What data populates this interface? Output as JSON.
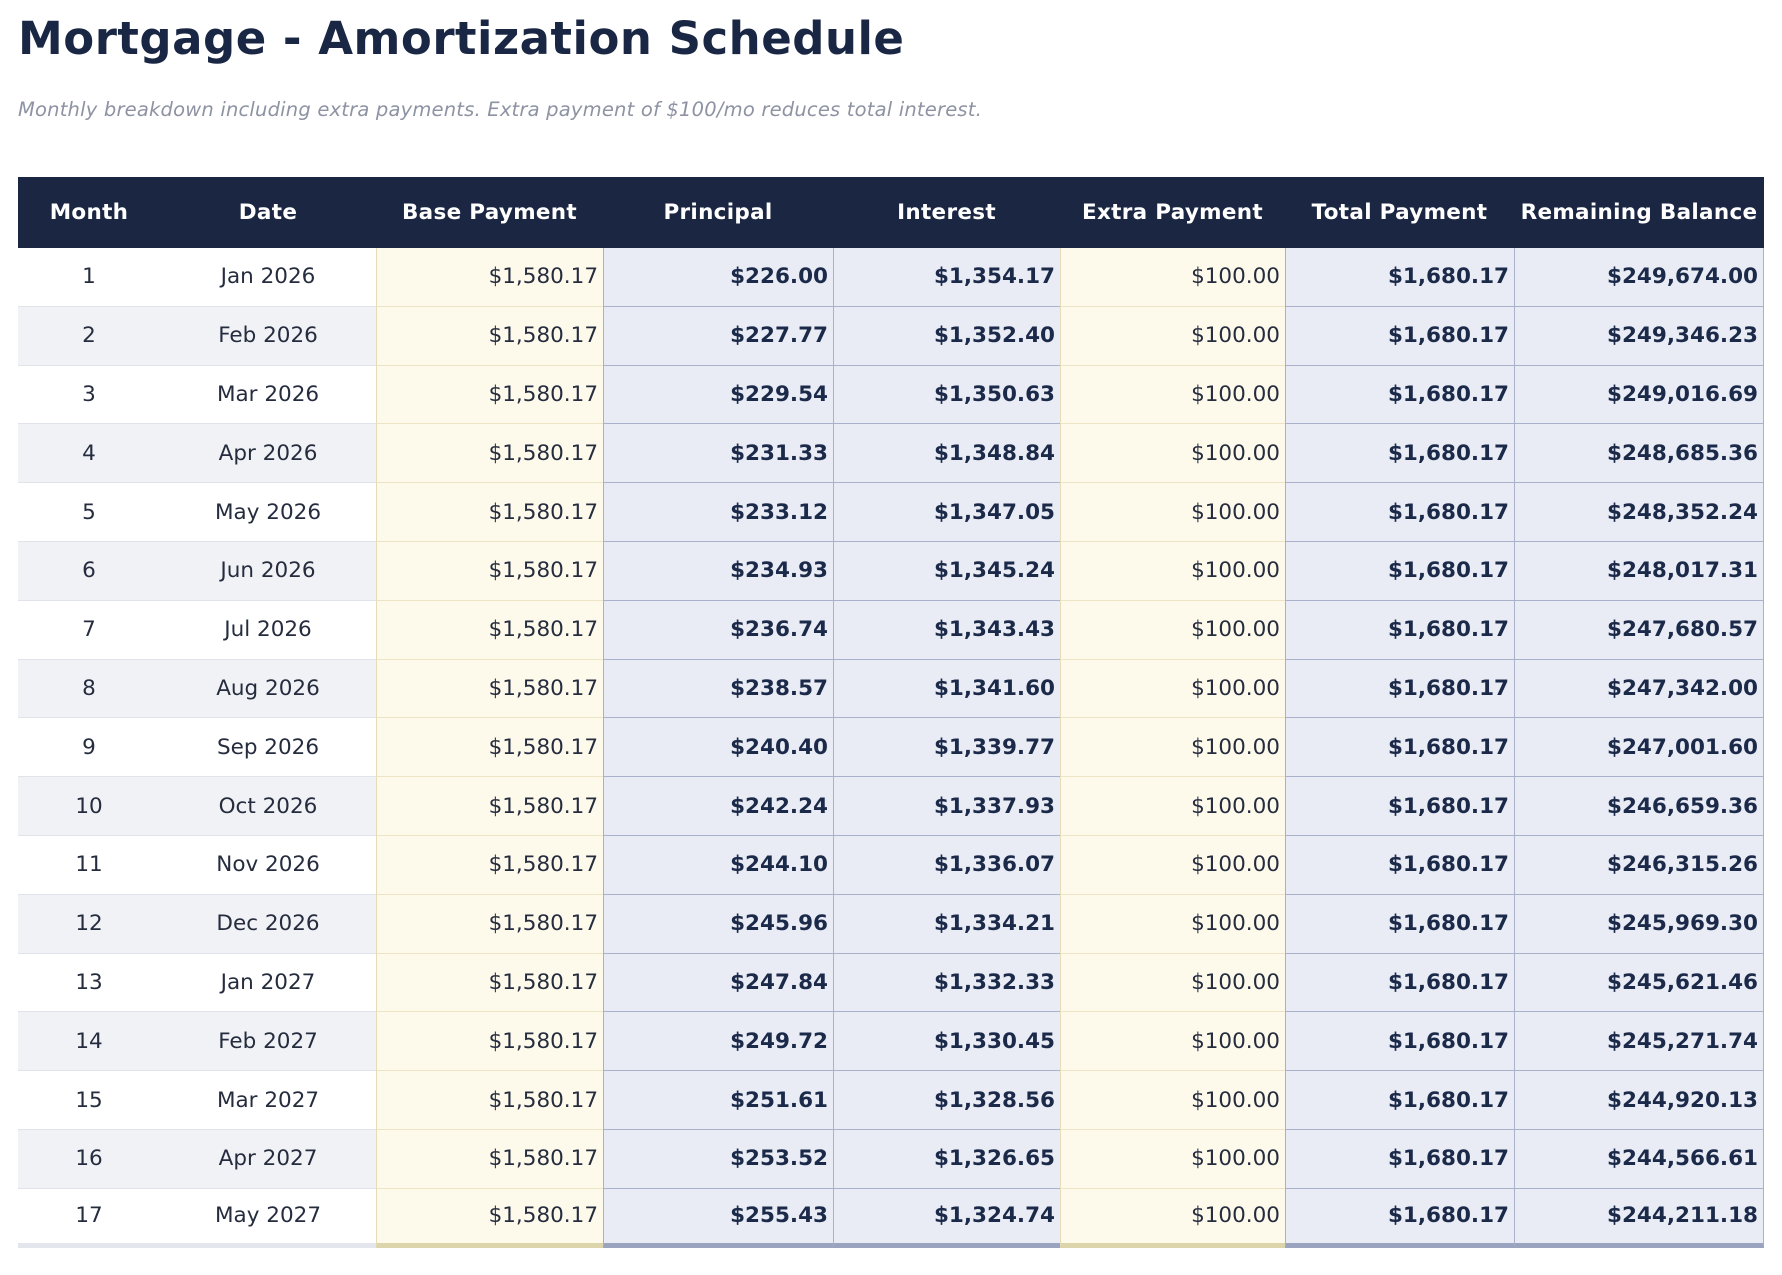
{
  "page": {
    "title": "Mortgage - Amortization Schedule",
    "subtitle": "Monthly breakdown including extra payments. Extra payment of $100/mo reduces total interest."
  },
  "colors": {
    "header_bg": "#1a2642",
    "header_text": "#ffffff",
    "title_text": "#1a2744",
    "subtitle_text": "#8d93a3",
    "cream_column_bg": "#fdf9eb",
    "blue_column_bg": "#e9ecf5",
    "alt_row_bg": "#f1f2f6",
    "blue_border": "#a9b1ca",
    "tan_border": "#e4dcb6",
    "bold_value_text": "#1c2a4a"
  },
  "table": {
    "columns": [
      {
        "key": "month",
        "label": "Month"
      },
      {
        "key": "date",
        "label": "Date"
      },
      {
        "key": "base",
        "label": "Base Payment"
      },
      {
        "key": "principal",
        "label": "Principal"
      },
      {
        "key": "interest",
        "label": "Interest"
      },
      {
        "key": "extra",
        "label": "Extra Payment"
      },
      {
        "key": "total",
        "label": "Total Payment"
      },
      {
        "key": "balance",
        "label": "Remaining Balance"
      }
    ],
    "rows": [
      {
        "month": "1",
        "date": "Jan 2026",
        "base": "$1,580.17",
        "principal": "$226.00",
        "interest": "$1,354.17",
        "extra": "$100.00",
        "total": "$1,680.17",
        "balance": "$249,674.00"
      },
      {
        "month": "2",
        "date": "Feb 2026",
        "base": "$1,580.17",
        "principal": "$227.77",
        "interest": "$1,352.40",
        "extra": "$100.00",
        "total": "$1,680.17",
        "balance": "$249,346.23"
      },
      {
        "month": "3",
        "date": "Mar 2026",
        "base": "$1,580.17",
        "principal": "$229.54",
        "interest": "$1,350.63",
        "extra": "$100.00",
        "total": "$1,680.17",
        "balance": "$249,016.69"
      },
      {
        "month": "4",
        "date": "Apr 2026",
        "base": "$1,580.17",
        "principal": "$231.33",
        "interest": "$1,348.84",
        "extra": "$100.00",
        "total": "$1,680.17",
        "balance": "$248,685.36"
      },
      {
        "month": "5",
        "date": "May 2026",
        "base": "$1,580.17",
        "principal": "$233.12",
        "interest": "$1,347.05",
        "extra": "$100.00",
        "total": "$1,680.17",
        "balance": "$248,352.24"
      },
      {
        "month": "6",
        "date": "Jun 2026",
        "base": "$1,580.17",
        "principal": "$234.93",
        "interest": "$1,345.24",
        "extra": "$100.00",
        "total": "$1,680.17",
        "balance": "$248,017.31"
      },
      {
        "month": "7",
        "date": "Jul 2026",
        "base": "$1,580.17",
        "principal": "$236.74",
        "interest": "$1,343.43",
        "extra": "$100.00",
        "total": "$1,680.17",
        "balance": "$247,680.57"
      },
      {
        "month": "8",
        "date": "Aug 2026",
        "base": "$1,580.17",
        "principal": "$238.57",
        "interest": "$1,341.60",
        "extra": "$100.00",
        "total": "$1,680.17",
        "balance": "$247,342.00"
      },
      {
        "month": "9",
        "date": "Sep 2026",
        "base": "$1,580.17",
        "principal": "$240.40",
        "interest": "$1,339.77",
        "extra": "$100.00",
        "total": "$1,680.17",
        "balance": "$247,001.60"
      },
      {
        "month": "10",
        "date": "Oct 2026",
        "base": "$1,580.17",
        "principal": "$242.24",
        "interest": "$1,337.93",
        "extra": "$100.00",
        "total": "$1,680.17",
        "balance": "$246,659.36"
      },
      {
        "month": "11",
        "date": "Nov 2026",
        "base": "$1,580.17",
        "principal": "$244.10",
        "interest": "$1,336.07",
        "extra": "$100.00",
        "total": "$1,680.17",
        "balance": "$246,315.26"
      },
      {
        "month": "12",
        "date": "Dec 2026",
        "base": "$1,580.17",
        "principal": "$245.96",
        "interest": "$1,334.21",
        "extra": "$100.00",
        "total": "$1,680.17",
        "balance": "$245,969.30"
      },
      {
        "month": "13",
        "date": "Jan 2027",
        "base": "$1,580.17",
        "principal": "$247.84",
        "interest": "$1,332.33",
        "extra": "$100.00",
        "total": "$1,680.17",
        "balance": "$245,621.46"
      },
      {
        "month": "14",
        "date": "Feb 2027",
        "base": "$1,580.17",
        "principal": "$249.72",
        "interest": "$1,330.45",
        "extra": "$100.00",
        "total": "$1,680.17",
        "balance": "$245,271.74"
      },
      {
        "month": "15",
        "date": "Mar 2027",
        "base": "$1,580.17",
        "principal": "$251.61",
        "interest": "$1,328.56",
        "extra": "$100.00",
        "total": "$1,680.17",
        "balance": "$244,920.13"
      },
      {
        "month": "16",
        "date": "Apr 2027",
        "base": "$1,580.17",
        "principal": "$253.52",
        "interest": "$1,326.65",
        "extra": "$100.00",
        "total": "$1,680.17",
        "balance": "$244,566.61"
      },
      {
        "month": "17",
        "date": "May 2027",
        "base": "$1,580.17",
        "principal": "$255.43",
        "interest": "$1,324.74",
        "extra": "$100.00",
        "total": "$1,680.17",
        "balance": "$244,211.18"
      }
    ]
  }
}
